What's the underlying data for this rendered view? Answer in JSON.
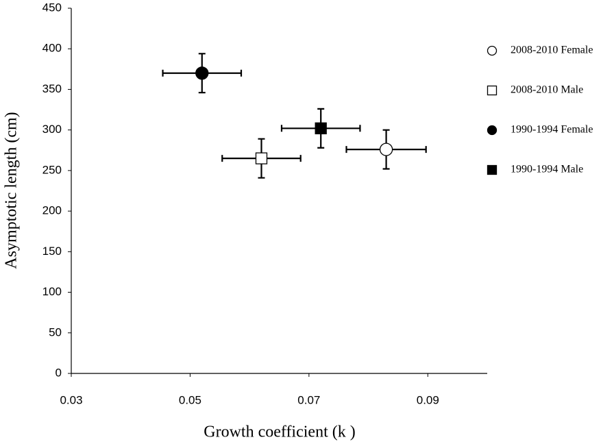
{
  "chart_data": {
    "type": "scatter",
    "x_label": "Growth coefficient (k )",
    "y_label": "Asymptotic length (cm)",
    "xlim": [
      0.03,
      0.1
    ],
    "xticks": [
      0.03,
      0.05,
      0.07,
      0.09
    ],
    "ylim": [
      0,
      450
    ],
    "yticks": [
      0,
      50,
      100,
      150,
      200,
      250,
      300,
      350,
      400,
      450
    ],
    "grid": false,
    "legend": "right",
    "series": [
      {
        "name": "2008-2010 Female",
        "color": "#000000",
        "marker": "circle",
        "filled": false,
        "x": [
          0.083
        ],
        "values": [
          276
        ],
        "xerr": [
          0.0067
        ],
        "yerr": [
          24
        ]
      },
      {
        "name": "2008-2010 Male",
        "color": "#000000",
        "marker": "square",
        "filled": false,
        "x": [
          0.062
        ],
        "values": [
          265
        ],
        "xerr": [
          0.0066
        ],
        "yerr": [
          24
        ]
      },
      {
        "name": "1990-1994 Female",
        "color": "#000000",
        "marker": "circle",
        "filled": true,
        "x": [
          0.052
        ],
        "values": [
          370
        ],
        "xerr": [
          0.0066
        ],
        "yerr": [
          24
        ]
      },
      {
        "name": "1990-1994 Male",
        "color": "#000000",
        "marker": "square",
        "filled": true,
        "x": [
          0.072
        ],
        "values": [
          302
        ],
        "xerr": [
          0.0066
        ],
        "yerr": [
          24
        ]
      }
    ]
  }
}
